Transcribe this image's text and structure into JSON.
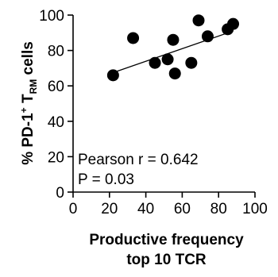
{
  "chart_data": {
    "type": "scatter",
    "x_axis": {
      "title_lines": [
        "Productive frequency",
        "top 10 TCR"
      ],
      "range": [
        0,
        100
      ],
      "ticks": [
        0,
        20,
        40,
        60,
        80,
        100
      ],
      "tick_labels": [
        "0",
        "20",
        "40",
        "60",
        "80",
        "100"
      ]
    },
    "y_axis": {
      "title": "% PD-1+ TRM cells",
      "title_parts": [
        {
          "text": "% PD-1",
          "style": "normal"
        },
        {
          "text": "+",
          "style": "sup"
        },
        {
          "text": " T",
          "style": "normal"
        },
        {
          "text": "RM",
          "style": "sub"
        },
        {
          "text": " cells",
          "style": "normal"
        }
      ],
      "range": [
        0,
        100
      ],
      "ticks": [
        0,
        20,
        40,
        60,
        80,
        100
      ],
      "tick_labels": [
        "0",
        "20",
        "40",
        "60",
        "80",
        "100"
      ]
    },
    "points": [
      {
        "x": 22,
        "y": 66
      },
      {
        "x": 33,
        "y": 87
      },
      {
        "x": 45,
        "y": 73
      },
      {
        "x": 52,
        "y": 75
      },
      {
        "x": 55,
        "y": 86
      },
      {
        "x": 56,
        "y": 67
      },
      {
        "x": 65,
        "y": 73
      },
      {
        "x": 69,
        "y": 97
      },
      {
        "x": 74,
        "y": 88
      },
      {
        "x": 85,
        "y": 92
      },
      {
        "x": 88,
        "y": 95
      }
    ],
    "trendline": {
      "x": [
        22,
        88
      ],
      "y": [
        67.5,
        91
      ]
    },
    "annotations": [
      "Pearson r = 0.642",
      "P = 0.03"
    ],
    "grid": false,
    "legend": "none",
    "colors": {
      "points": "#000000",
      "line": "#000000",
      "axes": "#000000"
    }
  }
}
